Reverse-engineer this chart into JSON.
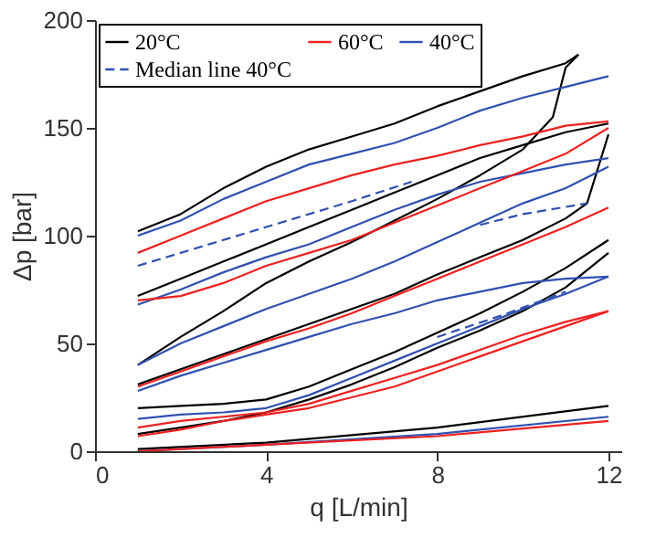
{
  "chart_data": {
    "type": "line",
    "xlabel": "q [L/min]",
    "ylabel": "Δp [bar]",
    "xlim": [
      0,
      12.3
    ],
    "ylim": [
      0,
      200
    ],
    "xticks": [
      0,
      4,
      8,
      12
    ],
    "yticks": [
      0,
      50,
      100,
      150,
      200
    ],
    "grid": false,
    "legend": "top left",
    "line_style": "solid",
    "marker": "none",
    "series": [
      {
        "name": "20°C",
        "color": "#000000",
        "x": [
          1,
          2,
          3,
          4,
          5,
          6,
          7,
          8,
          9,
          10,
          11,
          11.3
        ],
        "values": [
          102,
          110,
          122,
          132,
          140,
          146,
          152,
          160,
          167,
          174,
          180,
          184
        ]
      },
      {
        "color": "#000000",
        "x": [
          1,
          2,
          3,
          4,
          5,
          6,
          7,
          8,
          9,
          10,
          10.7,
          11,
          11.3
        ],
        "values": [
          40,
          53,
          65,
          78,
          88,
          97,
          107,
          117,
          128,
          140,
          155,
          178,
          184
        ]
      },
      {
        "color": "#000000",
        "x": [
          1,
          2,
          3,
          4,
          5,
          6,
          7,
          8,
          9,
          10,
          11,
          12
        ],
        "values": [
          72,
          80,
          88,
          96,
          104,
          112,
          120,
          128,
          136,
          142,
          148,
          152
        ]
      },
      {
        "color": "#000000",
        "x": [
          1,
          2,
          3,
          4,
          5,
          6,
          7,
          8,
          9,
          10,
          11,
          11.5,
          12
        ],
        "values": [
          31,
          38,
          45,
          52,
          59,
          66,
          73,
          82,
          90,
          98,
          108,
          115,
          147
        ]
      },
      {
        "color": "#000000",
        "x": [
          1,
          2,
          3,
          4,
          5,
          6,
          7,
          8,
          9,
          10,
          11,
          12
        ],
        "values": [
          20,
          21,
          22,
          24,
          30,
          38,
          46,
          55,
          64,
          74,
          85,
          98
        ]
      },
      {
        "color": "#000000",
        "x": [
          1,
          2,
          3,
          4,
          5,
          6,
          7,
          8,
          9,
          10,
          11,
          12
        ],
        "values": [
          8,
          11,
          14,
          18,
          24,
          31,
          39,
          48,
          56,
          65,
          76,
          92
        ]
      },
      {
        "color": "#000000",
        "x": [
          1,
          4,
          8,
          12
        ],
        "values": [
          1,
          4,
          11,
          21
        ]
      },
      {
        "name": "40°C",
        "color": "#3050b0",
        "x": [
          1,
          2,
          3,
          4,
          5,
          6,
          7,
          8,
          9,
          10,
          11,
          12
        ],
        "values": [
          100,
          107,
          117,
          125,
          133,
          138,
          143,
          150,
          158,
          164,
          169,
          174
        ]
      },
      {
        "color": "#3050b0",
        "x": [
          1,
          2,
          3,
          4,
          5,
          6,
          7,
          8,
          9,
          10,
          11,
          12
        ],
        "values": [
          68,
          75,
          83,
          90,
          96,
          104,
          112,
          119,
          125,
          129,
          133,
          136
        ]
      },
      {
        "color": "#3050b0",
        "x": [
          1,
          2,
          3,
          4,
          5,
          6,
          7,
          8,
          9,
          10,
          11,
          12
        ],
        "values": [
          40,
          50,
          58,
          66,
          73,
          80,
          88,
          97,
          106,
          115,
          122,
          132
        ]
      },
      {
        "color": "#3050b0",
        "x": [
          1,
          2,
          3,
          4,
          5,
          6,
          7,
          8,
          9,
          10,
          11,
          12
        ],
        "values": [
          28,
          35,
          41,
          47,
          53,
          59,
          64,
          70,
          74,
          78,
          80,
          81
        ]
      },
      {
        "color": "#3050b0",
        "x": [
          1,
          2,
          3,
          4,
          5,
          6,
          7,
          8,
          9,
          10,
          11,
          12
        ],
        "values": [
          15,
          17,
          18,
          20,
          26,
          34,
          42,
          50,
          58,
          66,
          73,
          81
        ]
      },
      {
        "color": "#3050b0",
        "x": [
          1,
          4,
          8,
          12
        ],
        "values": [
          0,
          3,
          8,
          16
        ]
      },
      {
        "name": "60°C",
        "color": "#ee2020",
        "x": [
          1,
          2,
          3,
          4,
          5,
          6,
          7,
          8,
          9,
          10,
          11,
          12
        ],
        "values": [
          92,
          100,
          108,
          116,
          122,
          128,
          133,
          137,
          142,
          146,
          151,
          153
        ]
      },
      {
        "color": "#ee2020",
        "x": [
          1,
          2,
          3,
          4,
          5,
          6,
          7,
          8,
          9,
          10,
          11,
          12
        ],
        "values": [
          70,
          72,
          78,
          86,
          92,
          98,
          106,
          114,
          122,
          130,
          138,
          150
        ]
      },
      {
        "color": "#ee2020",
        "x": [
          1,
          2,
          3,
          4,
          5,
          6,
          7,
          8,
          9,
          10,
          11,
          12
        ],
        "values": [
          30,
          37,
          44,
          51,
          57,
          64,
          72,
          80,
          88,
          96,
          104,
          113
        ]
      },
      {
        "color": "#ee2020",
        "x": [
          1,
          2,
          3,
          4,
          5,
          6,
          7,
          8,
          9,
          10,
          11,
          12
        ],
        "values": [
          11,
          14,
          16,
          18,
          22,
          28,
          34,
          40,
          47,
          54,
          60,
          65
        ]
      },
      {
        "color": "#ee2020",
        "x": [
          1,
          2,
          3,
          4,
          5,
          6,
          7,
          8,
          9,
          10,
          11,
          12
        ],
        "values": [
          7,
          10,
          14,
          17,
          20,
          25,
          30,
          37,
          44,
          51,
          58,
          65
        ]
      },
      {
        "color": "#ee2020",
        "x": [
          1,
          4,
          8,
          12
        ],
        "values": [
          0,
          3,
          7,
          14
        ]
      },
      {
        "name": "Median line 40°C",
        "color": "#3050b0",
        "line_style": "dashed",
        "x": [
          1,
          2,
          4,
          6,
          7.4
        ],
        "values": [
          86,
          92,
          104,
          116,
          125
        ]
      },
      {
        "color": "#3050b0",
        "line_style": "dashed",
        "x": [
          9,
          10,
          11.5
        ],
        "values": [
          105,
          110,
          115
        ]
      },
      {
        "color": "#3050b0",
        "line_style": "dashed",
        "x": [
          8,
          9.5,
          11
        ],
        "values": [
          53,
          63,
          74
        ]
      }
    ]
  }
}
